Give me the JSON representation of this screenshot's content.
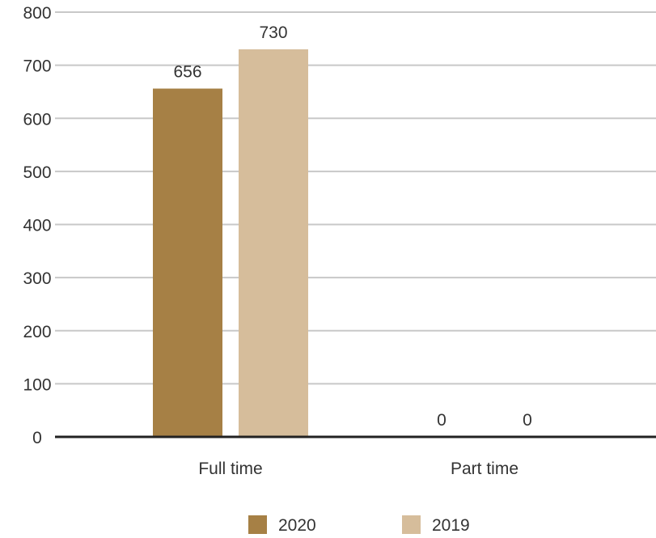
{
  "chart_data": {
    "type": "bar",
    "title": "",
    "xlabel": "",
    "ylabel": "",
    "categories": [
      "Full time",
      "Part time"
    ],
    "series": [
      {
        "name": "2020",
        "values": [
          656,
          0
        ],
        "color": "#a68045"
      },
      {
        "name": "2019",
        "values": [
          730,
          0
        ],
        "color": "#d6bd9b"
      }
    ],
    "data_labels": [
      [
        "656",
        "0"
      ],
      [
        "730",
        "0"
      ]
    ],
    "ylim": [
      0,
      800
    ],
    "yticks": [
      "0",
      "100",
      "200",
      "300",
      "400",
      "500",
      "600",
      "700",
      "800"
    ],
    "grid": true,
    "legend_position": "bottom",
    "colors": {
      "grid": "#c8c8c8",
      "axis": "#222222",
      "text": "#333333"
    }
  }
}
